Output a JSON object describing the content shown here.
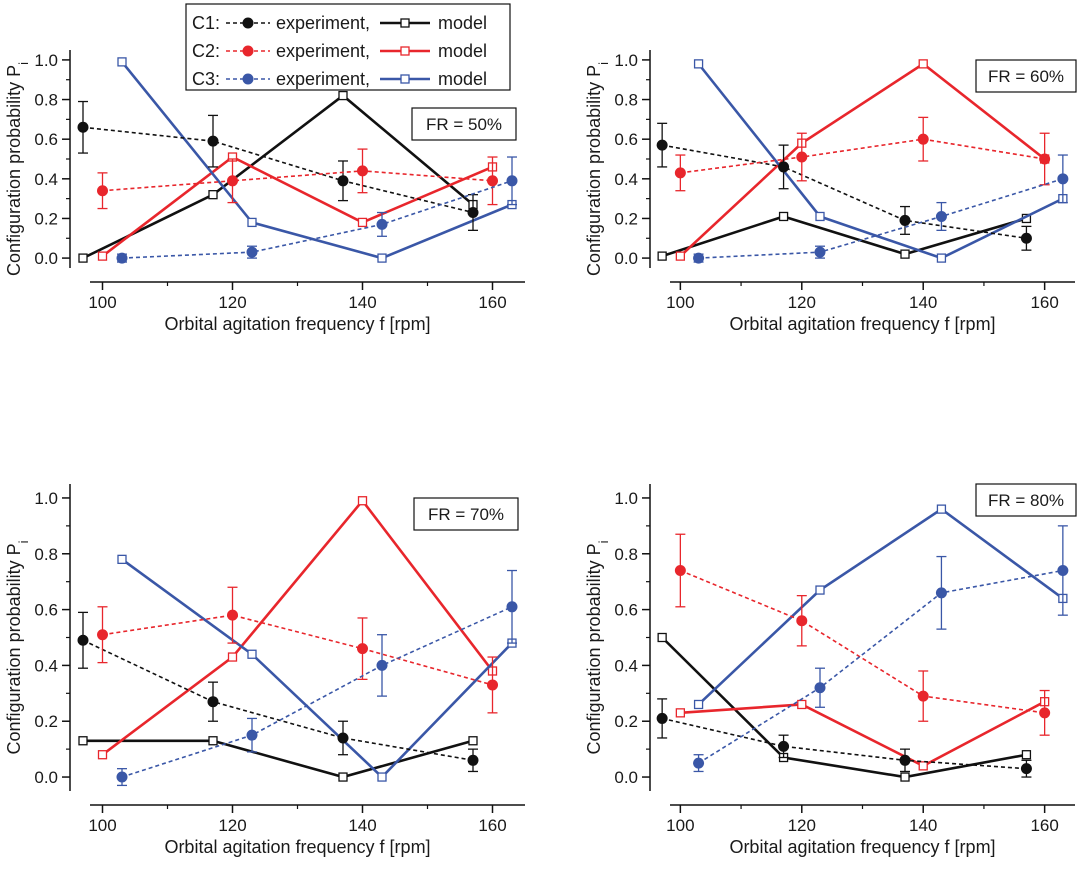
{
  "colors": {
    "C1": "#111111",
    "C2": "#e8262c",
    "C3": "#3a57a7"
  },
  "legend": {
    "rows": [
      {
        "label": "C1:",
        "series": "C1",
        "experiment": "experiment,",
        "model": "model"
      },
      {
        "label": "C2:",
        "series": "C2",
        "experiment": "experiment,",
        "model": "model"
      },
      {
        "label": "C3:",
        "series": "C3",
        "experiment": "experiment,",
        "model": "model"
      }
    ]
  },
  "chart_data": [
    {
      "type": "line",
      "fr_label": "FR = 50%",
      "xlabel": "Orbital agitation frequency f [rpm]",
      "ylabel": "Configuration probability P",
      "ylabel_sub": "i",
      "xlim": [
        95,
        165
      ],
      "ylim": [
        -0.05,
        1.05
      ],
      "xticks": [
        100,
        120,
        140,
        160
      ],
      "yticks": [
        0.0,
        0.2,
        0.4,
        0.6,
        0.8,
        1.0
      ],
      "ytick_labels": [
        "0.0",
        "0.2",
        "0.4",
        "0.6",
        "0.8",
        "1.0"
      ],
      "experiment": [
        {
          "series": "C1",
          "x": [
            97,
            117,
            137,
            157
          ],
          "y": [
            0.66,
            0.59,
            0.39,
            0.23
          ],
          "err": [
            0.13,
            0.13,
            0.1,
            0.09
          ]
        },
        {
          "series": "C2",
          "x": [
            100,
            120,
            140,
            160
          ],
          "y": [
            0.34,
            0.39,
            0.44,
            0.39
          ],
          "err": [
            0.09,
            0.11,
            0.11,
            0.12
          ]
        },
        {
          "series": "C3",
          "x": [
            103,
            123,
            143,
            163
          ],
          "y": [
            0.0,
            0.03,
            0.17,
            0.39
          ],
          "err": [
            0.02,
            0.03,
            0.06,
            0.12
          ]
        }
      ],
      "model": [
        {
          "series": "C1",
          "x": [
            97,
            117,
            137,
            157
          ],
          "y": [
            0.0,
            0.32,
            0.82,
            0.27
          ]
        },
        {
          "series": "C2",
          "x": [
            100,
            120,
            140,
            160
          ],
          "y": [
            0.01,
            0.51,
            0.18,
            0.46
          ]
        },
        {
          "series": "C3",
          "x": [
            103,
            123,
            143,
            163
          ],
          "y": [
            0.99,
            0.18,
            0.0,
            0.27
          ]
        }
      ]
    },
    {
      "type": "line",
      "fr_label": "FR = 60%",
      "xlabel": "Orbital agitation frequency f [rpm]",
      "ylabel": "Configuration probability P",
      "ylabel_sub": "i",
      "xlim": [
        95,
        165
      ],
      "ylim": [
        -0.05,
        1.05
      ],
      "xticks": [
        100,
        120,
        140,
        160
      ],
      "yticks": [
        0.0,
        0.2,
        0.4,
        0.6,
        0.8,
        1.0
      ],
      "ytick_labels": [
        "0.0",
        "0.2",
        "0.4",
        "0.6",
        "0.8",
        "1.0"
      ],
      "experiment": [
        {
          "series": "C1",
          "x": [
            97,
            117,
            137,
            157
          ],
          "y": [
            0.57,
            0.46,
            0.19,
            0.1
          ],
          "err": [
            0.11,
            0.11,
            0.07,
            0.06
          ]
        },
        {
          "series": "C2",
          "x": [
            100,
            120,
            140,
            160
          ],
          "y": [
            0.43,
            0.51,
            0.6,
            0.5
          ],
          "err": [
            0.09,
            0.12,
            0.11,
            0.13
          ]
        },
        {
          "series": "C3",
          "x": [
            103,
            123,
            143,
            163
          ],
          "y": [
            0.0,
            0.03,
            0.21,
            0.4
          ],
          "err": [
            0.02,
            0.03,
            0.07,
            0.12
          ]
        }
      ],
      "model": [
        {
          "series": "C1",
          "x": [
            97,
            117,
            137,
            157
          ],
          "y": [
            0.01,
            0.21,
            0.02,
            0.2
          ]
        },
        {
          "series": "C2",
          "x": [
            100,
            120,
            140,
            160
          ],
          "y": [
            0.01,
            0.58,
            0.98,
            0.5
          ]
        },
        {
          "series": "C3",
          "x": [
            103,
            123,
            143,
            163
          ],
          "y": [
            0.98,
            0.21,
            0.0,
            0.3
          ]
        }
      ]
    },
    {
      "type": "line",
      "fr_label": "FR = 70%",
      "xlabel": "Orbital agitation frequency f [rpm]",
      "ylabel": "Configuration probability P",
      "ylabel_sub": "i",
      "xlim": [
        95,
        165
      ],
      "ylim": [
        -0.05,
        1.05
      ],
      "xticks": [
        100,
        120,
        140,
        160
      ],
      "yticks": [
        0.0,
        0.2,
        0.4,
        0.6,
        0.8,
        1.0
      ],
      "ytick_labels": [
        "0.0",
        "0.2",
        "0.4",
        "0.6",
        "0.8",
        "1.0"
      ],
      "experiment": [
        {
          "series": "C1",
          "x": [
            97,
            117,
            137,
            157
          ],
          "y": [
            0.49,
            0.27,
            0.14,
            0.06
          ],
          "err": [
            0.1,
            0.07,
            0.06,
            0.04
          ]
        },
        {
          "series": "C2",
          "x": [
            100,
            120,
            140,
            160
          ],
          "y": [
            0.51,
            0.58,
            0.46,
            0.33
          ],
          "err": [
            0.1,
            0.1,
            0.11,
            0.1
          ]
        },
        {
          "series": "C3",
          "x": [
            103,
            123,
            143,
            163
          ],
          "y": [
            0.0,
            0.15,
            0.4,
            0.61
          ],
          "err": [
            0.03,
            0.06,
            0.11,
            0.13
          ]
        }
      ],
      "model": [
        {
          "series": "C1",
          "x": [
            97,
            117,
            137,
            157
          ],
          "y": [
            0.13,
            0.13,
            0.0,
            0.13
          ]
        },
        {
          "series": "C2",
          "x": [
            100,
            120,
            140,
            160
          ],
          "y": [
            0.08,
            0.43,
            0.99,
            0.38
          ]
        },
        {
          "series": "C3",
          "x": [
            103,
            123,
            143,
            163
          ],
          "y": [
            0.78,
            0.44,
            0.0,
            0.48
          ]
        }
      ]
    },
    {
      "type": "line",
      "fr_label": "FR = 80%",
      "xlabel": "Orbital agitation frequency f [rpm]",
      "ylabel": "Configuration probability P",
      "ylabel_sub": "i",
      "xlim": [
        95,
        165
      ],
      "ylim": [
        -0.05,
        1.05
      ],
      "xticks": [
        100,
        120,
        140,
        160
      ],
      "yticks": [
        0.0,
        0.2,
        0.4,
        0.6,
        0.8,
        1.0
      ],
      "ytick_labels": [
        "0.0",
        "0.2",
        "0.4",
        "0.6",
        "0.8",
        "1.0"
      ],
      "experiment": [
        {
          "series": "C1",
          "x": [
            97,
            117,
            137,
            157
          ],
          "y": [
            0.21,
            0.11,
            0.06,
            0.03
          ],
          "err": [
            0.07,
            0.04,
            0.04,
            0.03
          ]
        },
        {
          "series": "C2",
          "x": [
            100,
            120,
            140,
            160
          ],
          "y": [
            0.74,
            0.56,
            0.29,
            0.23
          ],
          "err": [
            0.13,
            0.09,
            0.09,
            0.08
          ]
        },
        {
          "series": "C3",
          "x": [
            103,
            123,
            143,
            163
          ],
          "y": [
            0.05,
            0.32,
            0.66,
            0.74
          ],
          "err": [
            0.03,
            0.07,
            0.13,
            0.16
          ]
        }
      ],
      "model": [
        {
          "series": "C1",
          "x": [
            97,
            117,
            137,
            157
          ],
          "y": [
            0.5,
            0.07,
            0.0,
            0.08
          ]
        },
        {
          "series": "C2",
          "x": [
            100,
            120,
            140,
            160
          ],
          "y": [
            0.23,
            0.26,
            0.04,
            0.27
          ]
        },
        {
          "series": "C3",
          "x": [
            103,
            123,
            143,
            163
          ],
          "y": [
            0.26,
            0.67,
            0.96,
            0.64
          ]
        }
      ]
    }
  ]
}
